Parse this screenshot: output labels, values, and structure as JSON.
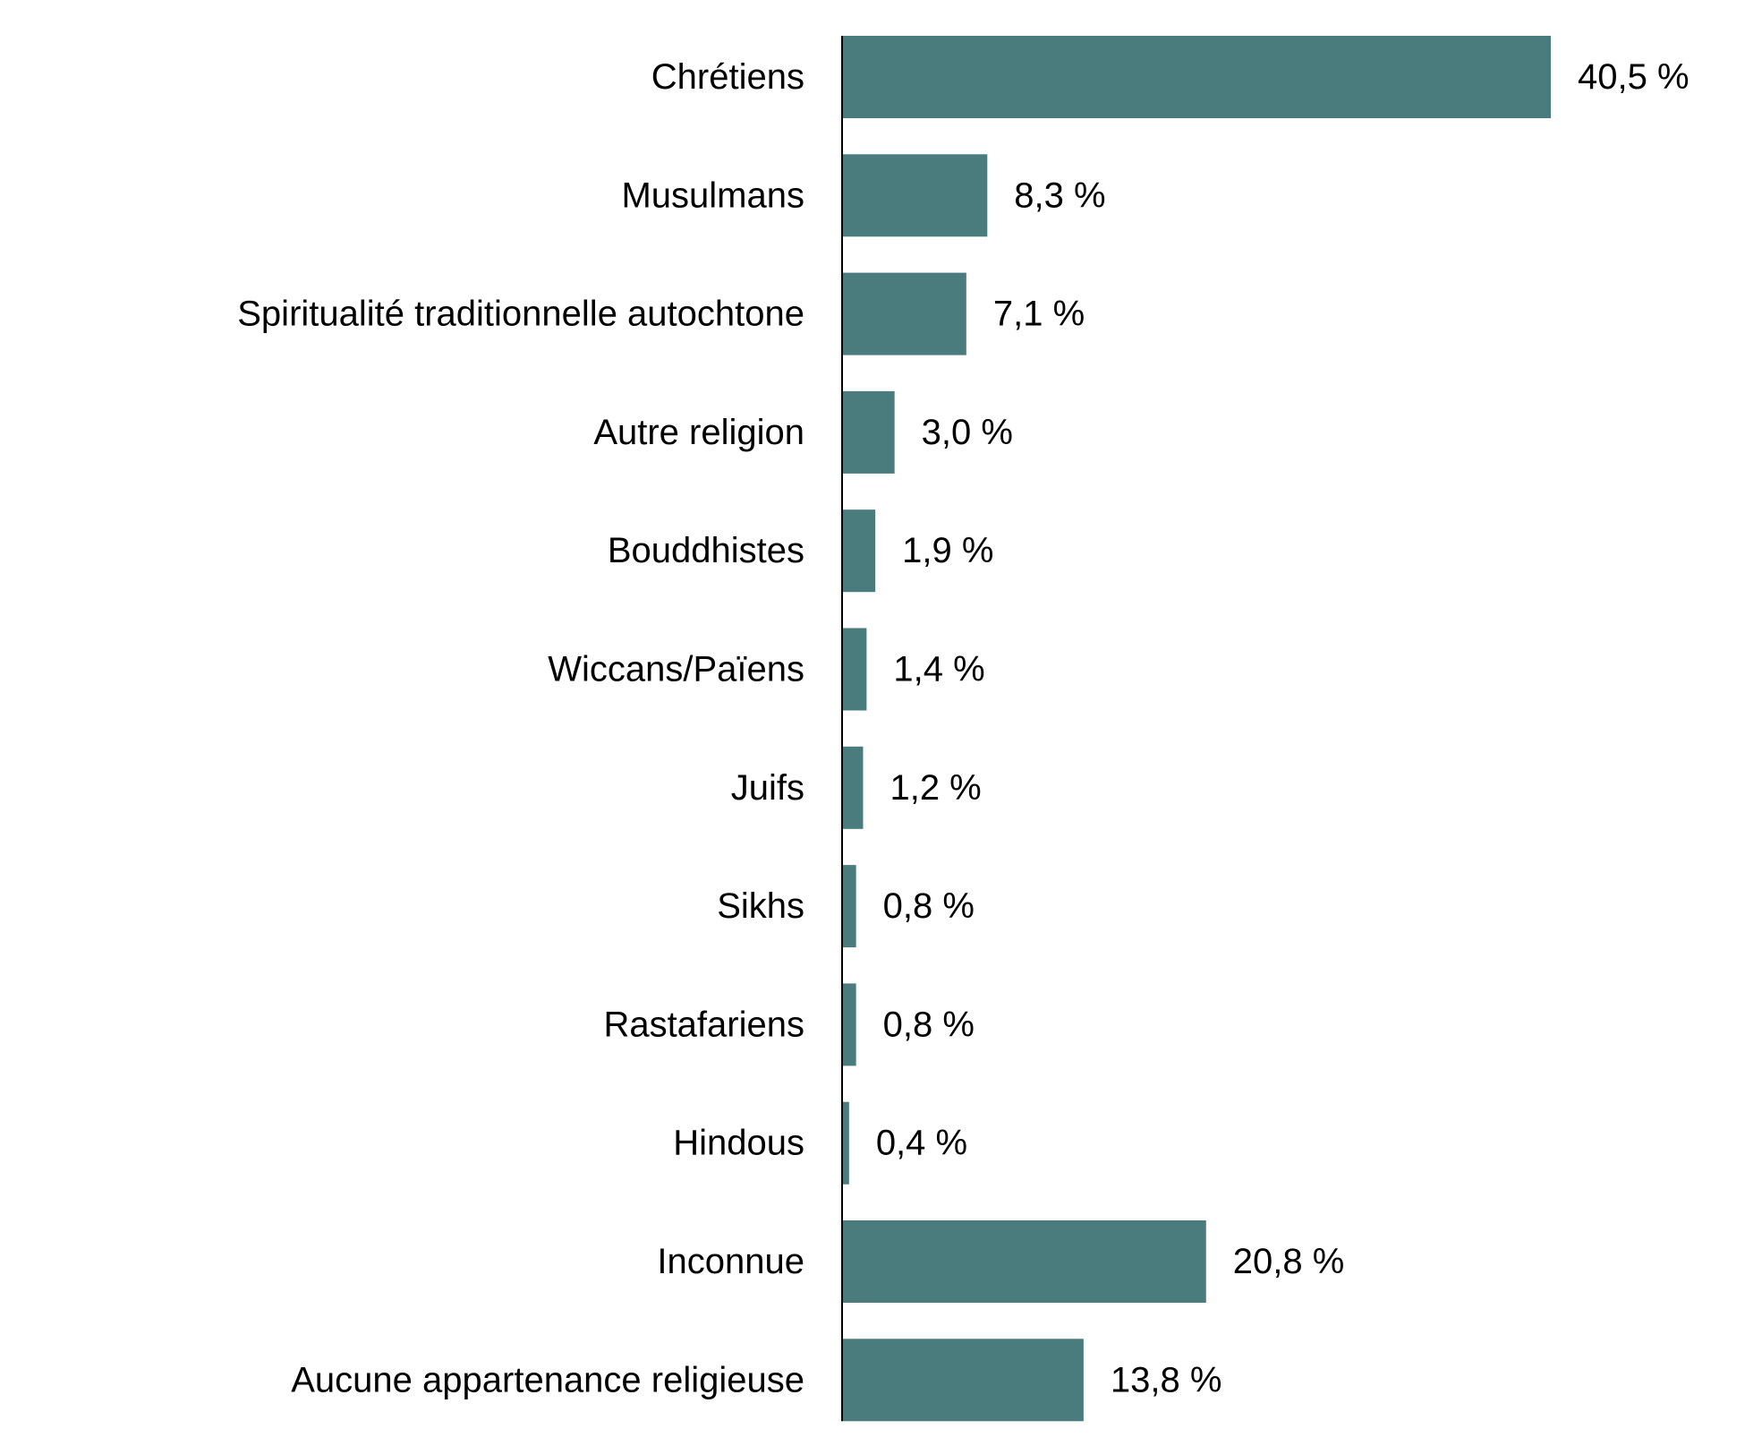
{
  "chart_data": {
    "type": "bar",
    "orientation": "horizontal",
    "categories": [
      "Chrétiens",
      "Musulmans",
      "Spiritualité traditionnelle autochtone",
      "Autre religion",
      "Bouddhistes",
      "Wiccans/Païens",
      "Juifs",
      "Sikhs",
      "Rastafariens",
      "Hindous",
      "Inconnue",
      "Aucune appartenance religieuse"
    ],
    "values": [
      40.5,
      8.3,
      7.1,
      3.0,
      1.9,
      1.4,
      1.2,
      0.8,
      0.8,
      0.4,
      20.8,
      13.8
    ],
    "value_labels": [
      "40,5 %",
      "8,3 %",
      "7,1 %",
      "3,0 %",
      "1,9 %",
      "1,4 %",
      "1,2 %",
      "0,8 %",
      "0,8 %",
      "0,4 %",
      "20,8 %",
      "13,8 %"
    ],
    "bar_color": "#4a7b7d",
    "axis_color": "#000000",
    "grid": false,
    "legend": "none",
    "xlim": [
      0,
      40.5
    ]
  }
}
